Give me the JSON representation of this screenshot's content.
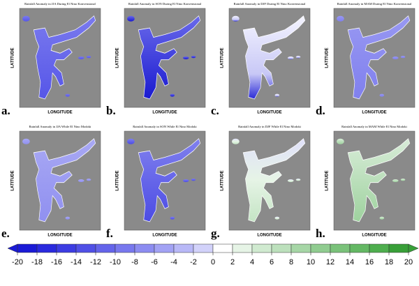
{
  "panels": [
    {
      "title": "Rainfall Anomaly in JJA During El Nino Konvensional",
      "label": "a."
    },
    {
      "title": "Rainfall Anomaly in SON During El Nino Konvensional",
      "label": "b."
    },
    {
      "title": "Rainfall Anomaly in DJF During El Nino Konvensional",
      "label": "c."
    },
    {
      "title": "Rainfall Anomaly in MAM During El Nino Konvensional",
      "label": "d."
    },
    {
      "title": "Rainfall Anomaly in JJA While El Nino Modoki",
      "label": "e."
    },
    {
      "title": "Rainfall Anomaly in SON While El Nino Modoki",
      "label": "f."
    },
    {
      "title": "Rainfall Anomaly in DJF While El Nino Modoki",
      "label": "g."
    },
    {
      "title": "Rainfall Anomaly in MAM While El Nino Modoki",
      "label": "h."
    }
  ],
  "axis_labels": {
    "y": "LATITUDE",
    "x": "LONGITUDE"
  },
  "colorbar": {
    "lim": [
      -20,
      20
    ],
    "ticks": [
      -20,
      -18,
      -16,
      -14,
      -12,
      -10,
      -8,
      -6,
      -4,
      -2,
      0,
      2,
      4,
      6,
      8,
      10,
      12,
      14,
      16,
      18,
      20
    ],
    "colors": [
      "#1a1ad6",
      "#2a2ade",
      "#3c3ce2",
      "#5050e6",
      "#6464ea",
      "#7878ee",
      "#8c8cf1",
      "#a2a2f4",
      "#b8b8f7",
      "#d2d2fa",
      "#ffffff",
      "#e6f4e6",
      "#d0ead0",
      "#bce0bc",
      "#a6d6a6",
      "#90cc90",
      "#7ac27a",
      "#64b864",
      "#4eae4e",
      "#389f38"
    ]
  }
}
